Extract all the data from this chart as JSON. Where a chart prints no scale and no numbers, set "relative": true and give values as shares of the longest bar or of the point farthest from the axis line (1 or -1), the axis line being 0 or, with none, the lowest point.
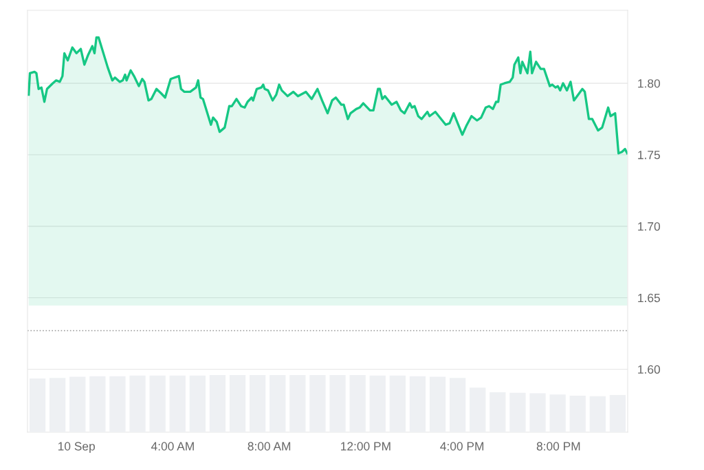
{
  "chart_data": [
    {
      "type": "area",
      "color": "#16c784",
      "x": [
        -1.98,
        -1.93,
        -1.74,
        -1.66,
        -1.57,
        -1.45,
        -1.33,
        -1.22,
        -0.98,
        -0.84,
        -0.69,
        -0.58,
        -0.5,
        -0.36,
        -0.17,
        0,
        0.18,
        0.33,
        0.49,
        0.66,
        0.75,
        0.83,
        0.92,
        1.3,
        1.49,
        1.6,
        1.8,
        1.92,
        2.02,
        2.08,
        2.25,
        2.39,
        2.59,
        2.73,
        2.82,
        2.99,
        3.11,
        3.32,
        3.51,
        3.68,
        3.91,
        4.25,
        4.34,
        4.48,
        4.72,
        4.96,
        5.05,
        5.15,
        5.25,
        5.58,
        5.67,
        5.82,
        5.94,
        6.15,
        6.34,
        6.45,
        6.64,
        6.83,
        6.98,
        7.1,
        7.27,
        7.33,
        7.48,
        7.67,
        7.75,
        7.81,
        7.95,
        8.14,
        8.29,
        8.41,
        8.52,
        8.76,
        9.0,
        9.19,
        9.52,
        9.76,
        10.0,
        10.19,
        10.42,
        10.61,
        10.76,
        10.99,
        11.09,
        11.26,
        11.37,
        11.61,
        11.75,
        11.9,
        12.18,
        12.32,
        12.51,
        12.59,
        12.69,
        12.8,
        13.08,
        13.28,
        13.46,
        13.61,
        13.83,
        13.92,
        14.03,
        14.18,
        14.32,
        14.56,
        14.65,
        14.89,
        15.13,
        15.32,
        15.48,
        15.65,
        15.84,
        16.01,
        16.17,
        16.39,
        16.62,
        16.79,
        16.98,
        17.12,
        17.28,
        17.41,
        17.5,
        17.6,
        17.76,
        17.98,
        18.1,
        18.17,
        18.33,
        18.42,
        18.5,
        18.71,
        18.83,
        18.9,
        19.07,
        19.26,
        19.4,
        19.64,
        19.74,
        19.88,
        19.97,
        20.07,
        20.19,
        20.35,
        20.5,
        20.64,
        20.99,
        21.09,
        21.26,
        21.4,
        21.64,
        21.81,
        22.06,
        22.16,
        22.35,
        22.49,
        22.63,
        22.76,
        22.85
      ],
      "values": [
        1.792,
        1.807,
        1.808,
        1.807,
        1.796,
        1.797,
        1.787,
        1.796,
        1.8,
        1.802,
        1.801,
        1.805,
        1.821,
        1.816,
        1.825,
        1.821,
        1.824,
        1.813,
        1.82,
        1.826,
        1.821,
        1.832,
        1.832,
        1.811,
        1.802,
        1.804,
        1.801,
        1.802,
        1.806,
        1.802,
        1.809,
        1.805,
        1.798,
        1.803,
        1.801,
        1.788,
        1.789,
        1.796,
        1.793,
        1.79,
        1.803,
        1.805,
        1.796,
        1.794,
        1.794,
        1.797,
        1.802,
        1.79,
        1.789,
        1.771,
        1.776,
        1.773,
        1.766,
        1.769,
        1.784,
        1.784,
        1.789,
        1.784,
        1.783,
        1.787,
        1.79,
        1.788,
        1.796,
        1.797,
        1.799,
        1.796,
        1.795,
        1.788,
        1.792,
        1.799,
        1.795,
        1.791,
        1.794,
        1.791,
        1.794,
        1.789,
        1.796,
        1.788,
        1.779,
        1.788,
        1.79,
        1.785,
        1.785,
        1.775,
        1.779,
        1.782,
        1.783,
        1.786,
        1.781,
        1.781,
        1.796,
        1.796,
        1.789,
        1.791,
        1.785,
        1.787,
        1.781,
        1.779,
        1.786,
        1.783,
        1.784,
        1.777,
        1.775,
        1.78,
        1.777,
        1.78,
        1.775,
        1.771,
        1.772,
        1.779,
        1.771,
        1.764,
        1.77,
        1.777,
        1.774,
        1.776,
        1.783,
        1.784,
        1.782,
        1.787,
        1.787,
        1.799,
        1.8,
        1.801,
        1.804,
        1.813,
        1.818,
        1.807,
        1.815,
        1.807,
        1.822,
        1.807,
        1.815,
        1.81,
        1.81,
        1.798,
        1.799,
        1.797,
        1.798,
        1.795,
        1.8,
        1.795,
        1.801,
        1.788,
        1.796,
        1.794,
        1.775,
        1.775,
        1.767,
        1.769,
        1.783,
        1.777,
        1.779,
        1.751,
        1.752,
        1.754,
        1.751
      ],
      "xlim": [
        -2.03,
        22.87
      ],
      "xticks": [
        {
          "value": 0,
          "label": "10 Sep"
        },
        {
          "value": 4,
          "label": "4:00 AM"
        },
        {
          "value": 8,
          "label": "8:00 AM"
        },
        {
          "value": 12,
          "label": "12:00 PM"
        },
        {
          "value": 16,
          "label": "4:00 PM"
        },
        {
          "value": 20,
          "label": "8:00 PM"
        }
      ],
      "ylim": [
        1.556,
        1.851
      ],
      "yticks": [
        {
          "value": 1.6,
          "label": "1.60"
        },
        {
          "value": 1.65,
          "label": "1.65"
        },
        {
          "value": 1.7,
          "label": "1.70"
        },
        {
          "value": 1.75,
          "label": "1.75"
        },
        {
          "value": 1.8,
          "label": "1.80"
        }
      ],
      "ref_lines": [
        {
          "axis": "y",
          "value": 1.627,
          "color": "#999999",
          "line_style": "dotted"
        }
      ],
      "grid": "y",
      "legend": false,
      "marker": "none",
      "line_style": "solid"
    },
    {
      "type": "bar",
      "relative": true,
      "color": "#eef0f3",
      "categories": [
        null,
        null,
        null,
        null,
        null,
        null,
        null,
        null,
        null,
        null,
        null,
        null,
        null,
        null,
        null,
        null,
        null,
        null,
        null,
        null,
        null,
        null,
        null,
        null,
        null,
        null,
        null,
        null,
        null,
        null
      ],
      "values": [
        0.94,
        0.95,
        0.97,
        0.98,
        0.98,
        0.99,
        0.99,
        0.99,
        0.99,
        1,
        1,
        1,
        1,
        1,
        1,
        1,
        1,
        0.99,
        0.99,
        0.98,
        0.97,
        0.95,
        0.78,
        0.7,
        0.69,
        0.68,
        0.66,
        0.64,
        0.63,
        0.65
      ],
      "legend": false,
      "grid": false
    }
  ]
}
